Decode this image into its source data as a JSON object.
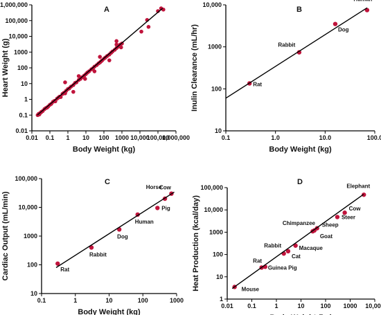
{
  "colors": {
    "point": "#c0143c",
    "line": "#000000",
    "axis": "#000000"
  },
  "chart_data": [
    {
      "id": "A",
      "type": "scatter",
      "panel_label": "A",
      "xlabel": "Body Weight (kg)",
      "ylabel": "Heart Weight (g)",
      "x_scale": "log",
      "y_scale": "log",
      "xlim": [
        0.01,
        1000000
      ],
      "ylim": [
        0.01,
        1000000
      ],
      "x_ticks": [
        0.01,
        0.1,
        1,
        10,
        100,
        1000,
        10000,
        100000,
        1000000
      ],
      "x_tick_labels": [
        "0.01",
        "0.1",
        "1",
        "10",
        "100",
        "1000",
        "10,000",
        "100,000",
        "1,000,000"
      ],
      "y_ticks": [
        0.01,
        0.1,
        1,
        10,
        100,
        1000,
        10000,
        100000,
        1000000
      ],
      "y_tick_labels": [
        "0.01",
        "0.1",
        "1",
        "10",
        "100",
        "1000",
        "10,000",
        "100,000",
        "1,000,000"
      ],
      "x_minor_ticks": [
        0.01,
        0.1,
        1,
        10,
        100,
        1000,
        10000,
        100000,
        1000000
      ],
      "y_minor_ticks": [],
      "fit_line": {
        "x": [
          0.02,
          180000
        ],
        "y": [
          0.1,
          600000
        ]
      },
      "points": [
        [
          0.021,
          0.1
        ],
        [
          0.024,
          0.12
        ],
        [
          0.026,
          0.11
        ],
        [
          0.03,
          0.14
        ],
        [
          0.034,
          0.16
        ],
        [
          0.04,
          0.18
        ],
        [
          0.05,
          0.24
        ],
        [
          0.06,
          0.28
        ],
        [
          0.07,
          0.3
        ],
        [
          0.08,
          0.35
        ],
        [
          0.1,
          0.45
        ],
        [
          0.12,
          0.52
        ],
        [
          0.15,
          0.7
        ],
        [
          0.18,
          0.8
        ],
        [
          0.2,
          0.75
        ],
        [
          0.25,
          1.1
        ],
        [
          0.3,
          1.3
        ],
        [
          0.35,
          1.5
        ],
        [
          0.4,
          1.4
        ],
        [
          0.5,
          2.2
        ],
        [
          0.6,
          2.6
        ],
        [
          0.7,
          2.4
        ],
        [
          0.8,
          3.5
        ],
        [
          1.0,
          4.5
        ],
        [
          1.2,
          5.0
        ],
        [
          1.5,
          6.5
        ],
        [
          2.0,
          8.0
        ],
        [
          2.5,
          11
        ],
        [
          3.0,
          12
        ],
        [
          4.0,
          17
        ],
        [
          5.0,
          20
        ],
        [
          6.0,
          25
        ],
        [
          8.0,
          32
        ],
        [
          10,
          40
        ],
        [
          12,
          50
        ],
        [
          15,
          60
        ],
        [
          20,
          80
        ],
        [
          25,
          95
        ],
        [
          30,
          120
        ],
        [
          40,
          150
        ],
        [
          50,
          190
        ],
        [
          60,
          220
        ],
        [
          70,
          260
        ],
        [
          80,
          300
        ],
        [
          100,
          380
        ],
        [
          120,
          450
        ],
        [
          150,
          560
        ],
        [
          200,
          700
        ],
        [
          250,
          900
        ],
        [
          300,
          1100
        ],
        [
          400,
          1400
        ],
        [
          500,
          1800
        ],
        [
          600,
          2200
        ],
        [
          700,
          2600
        ],
        [
          800,
          3000
        ],
        [
          1000,
          3500
        ],
        [
          900,
          2000
        ],
        [
          500,
          3000
        ],
        [
          12000,
          20000
        ],
        [
          30000,
          40000
        ],
        [
          25000,
          110000
        ],
        [
          100000,
          400000
        ],
        [
          150000,
          600000
        ],
        [
          200000,
          500000
        ],
        [
          0.7,
          12
        ],
        [
          2,
          3
        ],
        [
          4,
          30
        ],
        [
          9,
          20
        ],
        [
          30,
          60
        ],
        [
          60,
          500
        ],
        [
          200,
          300
        ],
        [
          500,
          5000
        ]
      ]
    },
    {
      "id": "B",
      "type": "scatter",
      "panel_label": "B",
      "xlabel": "Body Weight (kg)",
      "ylabel": "Inulin Clearance (mL/hr)",
      "x_scale": "log",
      "y_scale": "log",
      "xlim": [
        0.1,
        100
      ],
      "ylim": [
        10,
        10000
      ],
      "x_ticks": [
        0.1,
        1,
        10,
        100
      ],
      "x_tick_labels": [
        "0.1",
        "1.0",
        "10.0",
        "100.0"
      ],
      "y_ticks": [
        10,
        100,
        1000,
        10000
      ],
      "y_tick_labels": [
        "10",
        "100",
        "1000",
        "10,000"
      ],
      "x_minor_ticks": [],
      "y_minor_ticks": [],
      "fit_line": {
        "x": [
          0.1,
          70
        ],
        "y": [
          60,
          8500
        ]
      },
      "points": [
        {
          "label": "Rat",
          "x": 0.3,
          "y": 135
        },
        {
          "label": "Rabbit",
          "x": 3.0,
          "y": 740
        },
        {
          "label": "Dog",
          "x": 16,
          "y": 3500
        },
        {
          "label": "Human",
          "x": 70,
          "y": 7500
        }
      ]
    },
    {
      "id": "C",
      "type": "scatter",
      "panel_label": "C",
      "xlabel": "Body Weight (kg)",
      "ylabel": "Cardiac Output (mL/min)",
      "x_scale": "log",
      "y_scale": "log",
      "xlim": [
        0.1,
        1000
      ],
      "ylim": [
        10,
        100000
      ],
      "x_ticks": [
        0.1,
        1,
        10,
        100,
        1000
      ],
      "x_tick_labels": [
        "0.1",
        "1",
        "10",
        "100",
        "1000"
      ],
      "y_ticks": [
        10,
        100,
        1000,
        10000,
        100000
      ],
      "y_tick_labels": [
        "10",
        "100",
        "1000",
        "10,000",
        "100,000"
      ],
      "x_minor_ticks": [],
      "y_minor_ticks": [],
      "fit_line": {
        "x": [
          0.27,
          850
        ],
        "y": [
          80,
          34000
        ]
      },
      "points": [
        {
          "label": "Rat",
          "x": 0.3,
          "y": 110
        },
        {
          "label": "Rabbit",
          "x": 3.0,
          "y": 400
        },
        {
          "label": "Dog",
          "x": 20,
          "y": 1700
        },
        {
          "label": "Human",
          "x": 70,
          "y": 5600
        },
        {
          "label": "Pig",
          "x": 270,
          "y": 9500
        },
        {
          "label": "Horse",
          "x": 450,
          "y": 20000
        },
        {
          "label": "Cow",
          "x": 700,
          "y": 30000
        }
      ]
    },
    {
      "id": "D",
      "type": "scatter",
      "panel_label": "D",
      "xlabel": "Body Weight (kg)",
      "ylabel": "Heat Production (kcal/day)",
      "x_scale": "log",
      "y_scale": "log",
      "xlim": [
        0.01,
        10000
      ],
      "ylim": [
        1,
        100000
      ],
      "x_ticks": [
        0.01,
        0.1,
        1,
        10,
        100,
        1000,
        10000
      ],
      "x_tick_labels": [
        "0.01",
        "0.1",
        "1",
        "10",
        "100",
        "1000",
        "10,000"
      ],
      "y_ticks": [
        1,
        10,
        100,
        1000,
        10000,
        100000
      ],
      "y_tick_labels": [
        "1",
        "10",
        "100",
        "1000",
        "10,000",
        "100,000"
      ],
      "x_minor_ticks": [],
      "y_minor_ticks": [],
      "fit_line": {
        "x": [
          0.016,
          3500
        ],
        "y": [
          3,
          50000
        ]
      },
      "points": [
        {
          "label": "Mouse",
          "x": 0.02,
          "y": 3.5
        },
        {
          "label": "Rat",
          "x": 0.25,
          "y": 26
        },
        {
          "label": "Guinea Pig",
          "x": 0.35,
          "y": 28
        },
        {
          "label": "Rabbit",
          "x": 2.0,
          "y": 110
        },
        {
          "label": "Cat",
          "x": 3.0,
          "y": 140
        },
        {
          "label": "Macaque",
          "x": 6.0,
          "y": 250
        },
        {
          "label": "Chimpanzee",
          "x": 30,
          "y": 1100
        },
        {
          "label": "Goat",
          "x": 35,
          "y": 1200
        },
        {
          "label": "Sheep",
          "x": 45,
          "y": 1500
        },
        {
          "label": "Steer",
          "x": 300,
          "y": 4800
        },
        {
          "label": "Cow",
          "x": 600,
          "y": 7500
        },
        {
          "label": "Elephant",
          "x": 3600,
          "y": 48000
        }
      ]
    }
  ]
}
